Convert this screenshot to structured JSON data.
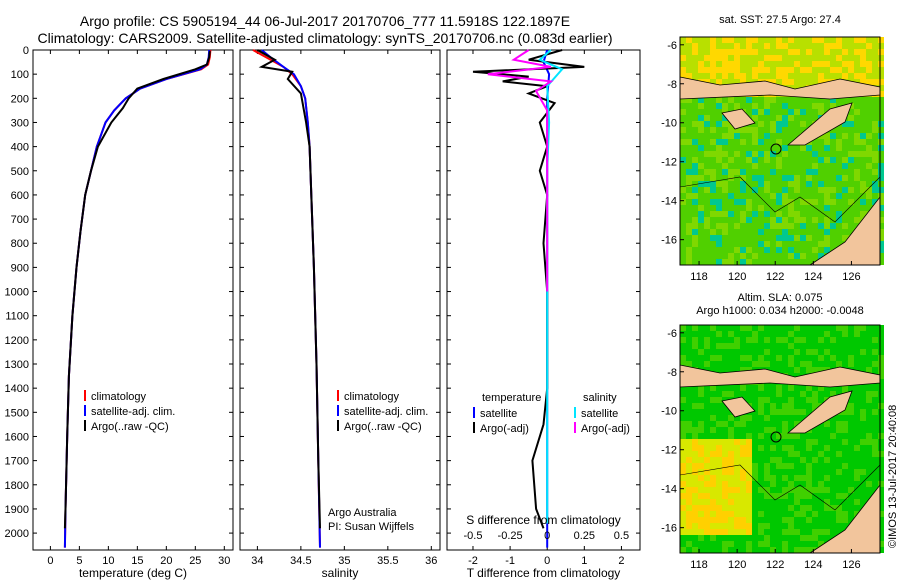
{
  "header": {
    "line1": "Argo profile: CS 5905194_44 06-Jul-2017 20170706_777 11.5918S 122.1897E",
    "line2": "Climatology: CARS2009. Satellite-adjusted climatology: synTS_20170706.nc (0.083d earlier)"
  },
  "depth_ticks": [
    "0",
    "100",
    "200",
    "300",
    "400",
    "500",
    "600",
    "700",
    "800",
    "900",
    "1000",
    "1100",
    "1200",
    "1300",
    "1400",
    "1500",
    "1600",
    "1700",
    "1800",
    "1900",
    "2000"
  ],
  "colors": {
    "climatology": "#ff0000",
    "satellite": "#0000ff",
    "argo": "#000000",
    "sat_salinity": "#00e5ff",
    "argo_salinity": "#ff00ff",
    "land": "#f2c59c",
    "ocean_low": "#00c800",
    "ocean_high": "#ffd800"
  },
  "chart_data": [
    {
      "type": "line",
      "xlabel": "temperature (deg C)",
      "xticks": [
        "0",
        "5",
        "10",
        "15",
        "20",
        "25",
        "30"
      ],
      "xlim": [
        -3,
        31.5
      ],
      "ylim": [
        0,
        2070
      ],
      "legend": [
        "climatology",
        "satellite-adj. clim.",
        "Argo(..raw -QC)"
      ],
      "series": [
        {
          "name": "climatology",
          "x": [
            27.6,
            27.5,
            27.2,
            26.0,
            20.0,
            15.5,
            13.0,
            11.0,
            9.5,
            8.0,
            7.0,
            6.0,
            5.2,
            4.5,
            3.8,
            3.2,
            2.9,
            2.6,
            2.5
          ],
          "y": [
            0,
            30,
            60,
            80,
            120,
            160,
            200,
            250,
            300,
            400,
            500,
            600,
            750,
            900,
            1100,
            1350,
            1600,
            1900,
            2060
          ]
        },
        {
          "name": "satellite-adj. clim.",
          "x": [
            27.4,
            27.3,
            27.0,
            25.8,
            20.0,
            15.5,
            13.0,
            11.0,
            9.5,
            8.0,
            7.0,
            6.0,
            5.2,
            4.5,
            3.8,
            3.2,
            2.9,
            2.6,
            2.5
          ],
          "y": [
            0,
            30,
            60,
            80,
            120,
            160,
            200,
            250,
            300,
            400,
            500,
            600,
            750,
            900,
            1100,
            1350,
            1600,
            1900,
            2060
          ]
        },
        {
          "name": "Argo(..raw -QC)",
          "x": [
            27.5,
            27.4,
            27.0,
            25.0,
            19.5,
            15.0,
            13.5,
            12.5,
            10.5,
            8.2,
            7.0,
            6.0,
            5.2,
            4.5,
            3.8,
            3.2,
            2.9,
            2.6,
            2.5
          ],
          "y": [
            5,
            30,
            60,
            80,
            120,
            160,
            200,
            240,
            300,
            400,
            500,
            600,
            750,
            900,
            1100,
            1350,
            1600,
            1900,
            1980
          ]
        }
      ]
    },
    {
      "type": "line",
      "xlabel": "salinity",
      "xticks": [
        "34",
        "34.5",
        "35",
        "35.5",
        "36"
      ],
      "xlim": [
        33.8,
        36.1
      ],
      "ylim": [
        0,
        2070
      ],
      "legend": [
        "climatology",
        "satellite-adj. clim.",
        "Argo(..raw -QC)"
      ],
      "annotations": [
        "Argo Australia",
        "PI: Susan Wijffels"
      ],
      "series": [
        {
          "name": "climatology",
          "x": [
            33.95,
            34.1,
            34.3,
            34.4,
            34.5,
            34.55,
            34.58,
            34.6,
            34.62,
            34.65,
            34.68,
            34.7,
            34.72
          ],
          "y": [
            0,
            30,
            70,
            100,
            150,
            200,
            300,
            400,
            600,
            900,
            1300,
            1700,
            2060
          ]
        },
        {
          "name": "satellite-adj. clim.",
          "x": [
            34.05,
            34.15,
            34.3,
            34.42,
            34.5,
            34.55,
            34.58,
            34.6,
            34.62,
            34.65,
            34.68,
            34.7,
            34.72
          ],
          "y": [
            0,
            30,
            70,
            100,
            150,
            200,
            300,
            400,
            600,
            900,
            1300,
            1700,
            2060
          ]
        },
        {
          "name": "Argo(..raw -QC)",
          "x": [
            34.0,
            34.2,
            34.05,
            34.4,
            34.35,
            34.5,
            34.56,
            34.6,
            34.62,
            34.65,
            34.68,
            34.7,
            34.72
          ],
          "y": [
            0,
            40,
            70,
            90,
            120,
            180,
            300,
            400,
            600,
            900,
            1300,
            1700,
            1980
          ]
        }
      ]
    },
    {
      "type": "line",
      "xlabel": "T difference from climatology",
      "xticks": [
        "-2",
        "-1",
        "0",
        "1",
        "2"
      ],
      "xlabel2": "S difference from climatology",
      "xticks2": [
        "-0.5",
        "-0.25",
        "0",
        "0.25",
        "0.5"
      ],
      "xlim": [
        -2.7,
        2.5
      ],
      "ylim": [
        0,
        2070
      ],
      "legend": [
        "temperature",
        "satellite",
        "Argo(-adj)",
        "salinity",
        "satellite",
        "Argo(-adj)"
      ],
      "series": [
        {
          "name": "temperature satellite",
          "x": [
            0.0,
            -0.1,
            0.05,
            0.0,
            0.0,
            0.0,
            0.0,
            0.0,
            0.0,
            0.0
          ],
          "y": [
            0,
            50,
            100,
            200,
            400,
            800,
            1200,
            1600,
            1900,
            2060
          ]
        },
        {
          "name": "temperature Argo(-adj)",
          "x": [
            0.4,
            -0.5,
            1.0,
            -2.0,
            -0.5,
            -1.2,
            0.0,
            -0.5,
            0.2,
            -0.2,
            0.0,
            -0.2,
            0.0,
            -0.1,
            0.0,
            0.0,
            0.0,
            -0.1,
            -0.4,
            -0.3,
            -0.1
          ],
          "y": [
            0,
            40,
            70,
            90,
            110,
            130,
            150,
            180,
            220,
            300,
            400,
            500,
            600,
            800,
            1000,
            1200,
            1400,
            1550,
            1700,
            1900,
            1980
          ]
        },
        {
          "name": "salinity satellite",
          "x": [
            0.1,
            -0.2,
            0.4,
            0.0,
            0.05,
            0.0,
            0.0,
            0.0,
            0.0,
            0.0
          ],
          "y": [
            0,
            40,
            80,
            150,
            300,
            500,
            800,
            1200,
            1600,
            1960
          ]
        },
        {
          "name": "salinity Argo(-adj)",
          "x": [
            -0.5,
            -0.9,
            0.1,
            -1.6,
            0.1,
            -0.3,
            0.0,
            0.0,
            0.0,
            0.0
          ],
          "y": [
            0,
            40,
            70,
            100,
            130,
            170,
            250,
            400,
            700,
            1000
          ]
        }
      ]
    }
  ],
  "maps": {
    "sst": {
      "title": "sat. SST: 27.5 Argo: 27.4",
      "yticks": [
        "-6",
        "-8",
        "-10",
        "-12",
        "-14",
        "-16"
      ],
      "xticks": [
        "118",
        "120",
        "122",
        "124",
        "126"
      ]
    },
    "sla": {
      "title1": "Altim. SLA: 0.075",
      "title2": "Argo h1000: 0.034 h2000: -0.0048",
      "yticks": [
        "-6",
        "-8",
        "-10",
        "-12",
        "-14",
        "-16"
      ],
      "xticks": [
        "118",
        "120",
        "122",
        "124",
        "126"
      ]
    }
  },
  "credit": "©IMOS 13-Jul-2017 20:40:08"
}
